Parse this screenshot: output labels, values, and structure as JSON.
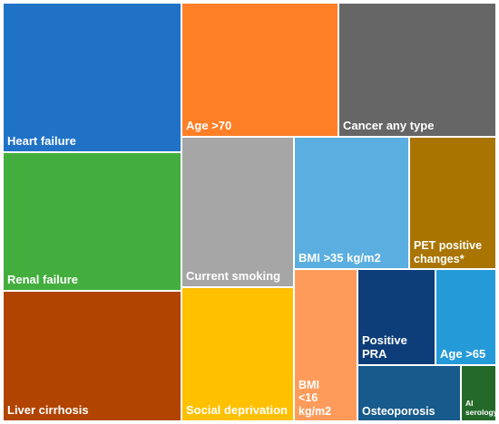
{
  "chart_data": {
    "type": "treemap",
    "title": "",
    "items": [
      {
        "label": "Heart failure",
        "color": "#1f72c6"
      },
      {
        "label": "Age >70",
        "color": "#ff7f27"
      },
      {
        "label": "Cancer any type",
        "color": "#666666"
      },
      {
        "label": "Renal failure",
        "color": "#43ae3e"
      },
      {
        "label": "Current smoking",
        "color": "#a6a6a6"
      },
      {
        "label": "BMI >35 kg/m2",
        "color": "#5aaee0"
      },
      {
        "label": "PET positive changes*",
        "color": "#a97400"
      },
      {
        "label": "Liver cirrhosis",
        "color": "#b14400"
      },
      {
        "label": "Social deprivation",
        "color": "#ffc000"
      },
      {
        "label": "BMI <16 kg/m2",
        "color": "#ff9b5a"
      },
      {
        "label": "Positive PRA",
        "color": "#0d3e7a"
      },
      {
        "label": "Age >65",
        "color": "#259ad9"
      },
      {
        "label": "Osteoporosis",
        "color": "#175a8c"
      },
      {
        "label": "AI serology#",
        "color": "#24692a"
      }
    ]
  }
}
